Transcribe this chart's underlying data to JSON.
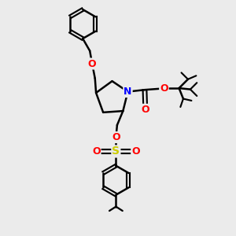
{
  "bg_color": "#ebebeb",
  "bond_color": "#000000",
  "bond_width": 1.8,
  "atom_colors": {
    "O": "#ff0000",
    "N": "#0000ff",
    "S": "#cccc00",
    "C": "#000000"
  },
  "figsize": [
    3.0,
    3.0
  ],
  "dpi": 100,
  "xlim": [
    0,
    10
  ],
  "ylim": [
    0,
    10
  ]
}
